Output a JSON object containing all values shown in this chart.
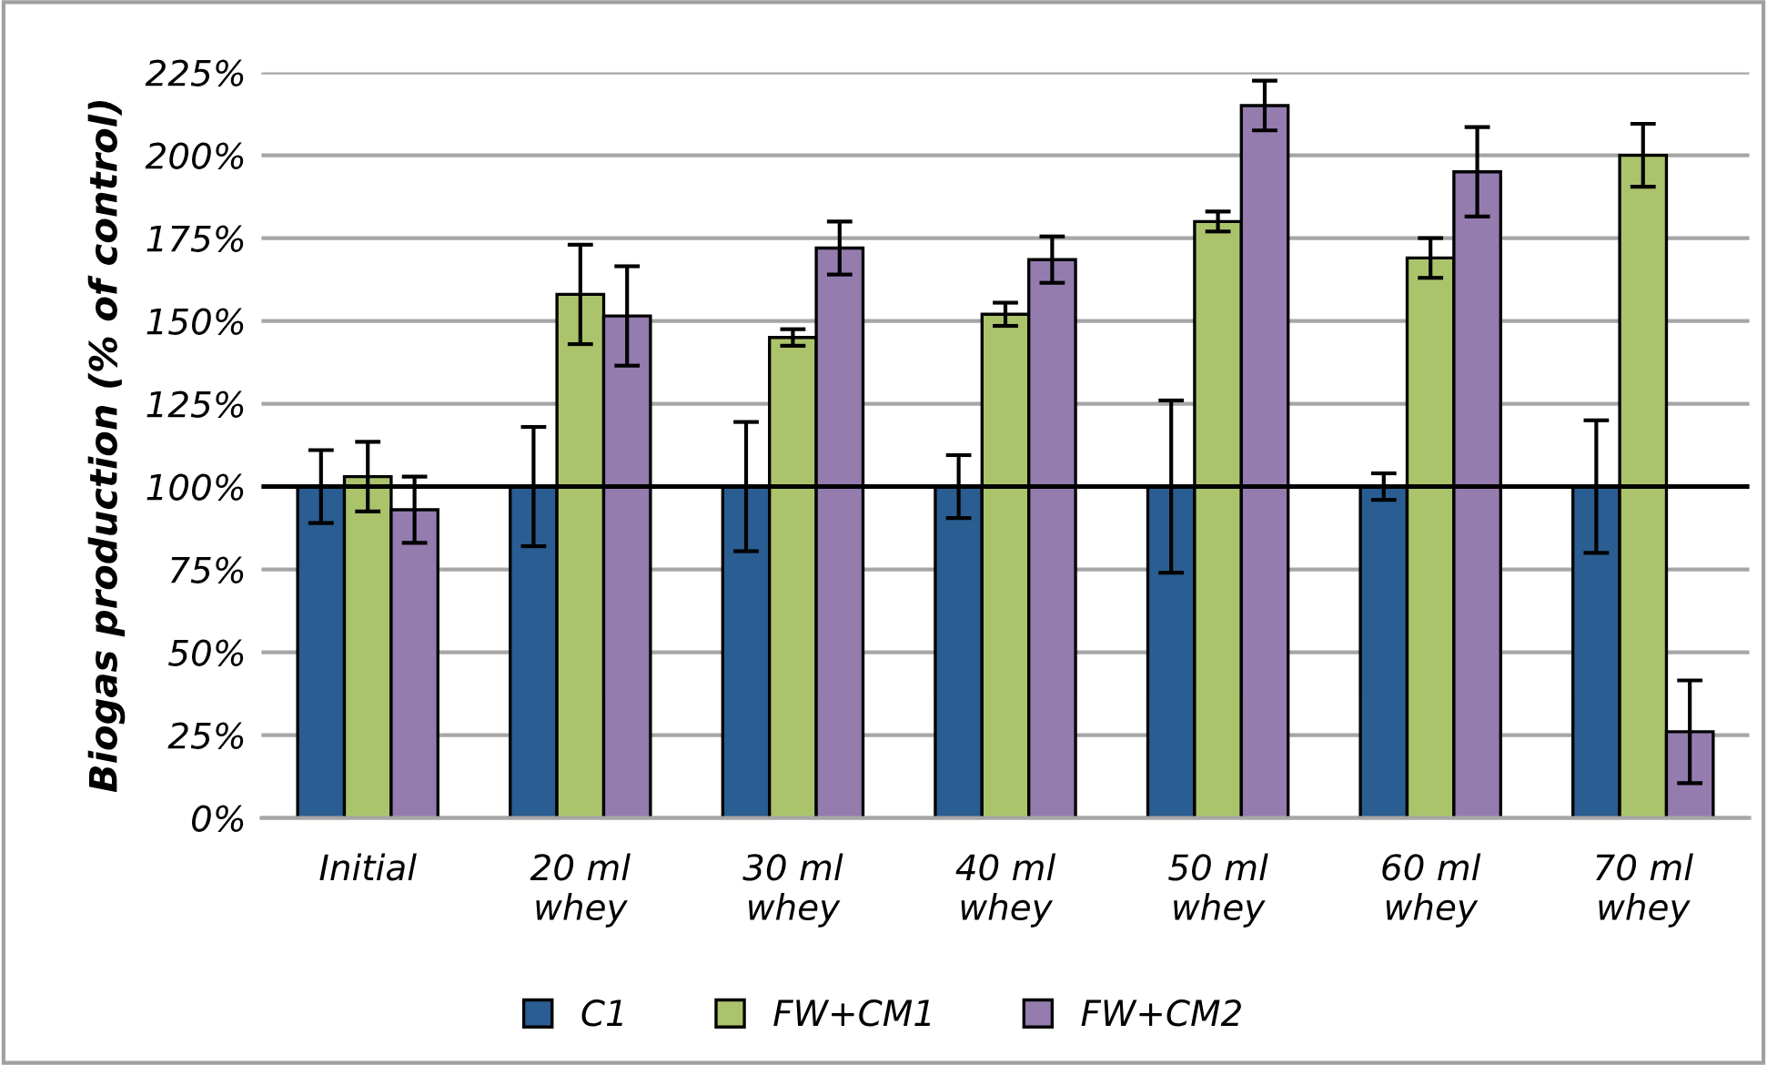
{
  "chart_data": {
    "type": "bar",
    "ylabel": "Biogas production (% of control)",
    "categories": [
      "Initial",
      "20 ml\nwhey",
      "30 ml\nwhey",
      "40 ml\nwhey",
      "50 ml\nwhey",
      "60 ml\nwhey",
      "70 ml\nwhey"
    ],
    "series": [
      {
        "name": "C1",
        "color": "#2a5d91",
        "values": [
          100,
          100,
          100,
          100,
          100,
          100,
          100
        ],
        "errors": [
          11,
          18,
          19.5,
          9.5,
          26,
          4,
          20
        ]
      },
      {
        "name": "FW+CM1",
        "color": "#abc46c",
        "values": [
          103,
          158,
          145,
          152,
          180,
          169,
          200
        ],
        "errors": [
          10.5,
          15,
          2.5,
          3.5,
          3,
          6,
          9.5
        ]
      },
      {
        "name": "FW+CM2",
        "color": "#947caf",
        "values": [
          93,
          151.5,
          172,
          168.5,
          215,
          195,
          26
        ],
        "errors": [
          10,
          15,
          8,
          7,
          7.5,
          13.5,
          15.5
        ]
      }
    ],
    "ylim": [
      0,
      225
    ],
    "yticks": [
      {
        "value": 0,
        "label": "0%"
      },
      {
        "value": 25,
        "label": "25%"
      },
      {
        "value": 50,
        "label": "50%"
      },
      {
        "value": 75,
        "label": "75%"
      },
      {
        "value": 100,
        "label": "100%"
      },
      {
        "value": 125,
        "label": "125%"
      },
      {
        "value": 150,
        "label": "150%"
      },
      {
        "value": 175,
        "label": "175%"
      },
      {
        "value": 200,
        "label": "200%"
      },
      {
        "value": 225,
        "label": "225%"
      }
    ],
    "ref_lines": [
      {
        "axis": "y",
        "value": 100,
        "color": "#000000",
        "line_style": "solid"
      }
    ],
    "grid": "y",
    "legend": "bottom"
  }
}
